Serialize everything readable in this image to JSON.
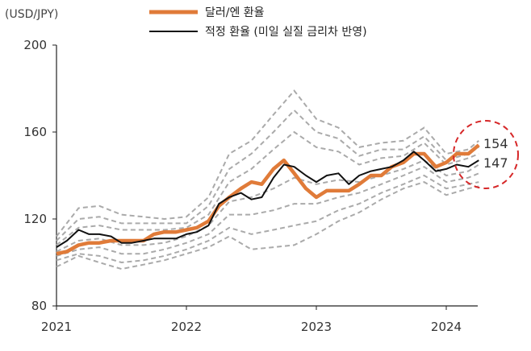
{
  "chart_data": {
    "type": "line",
    "unit_label": "(USD/JPY)",
    "ylim": [
      80,
      200
    ],
    "y_ticks": [
      "80",
      "120",
      "160",
      "200"
    ],
    "x_ticks": [
      "2021",
      "2022",
      "2023",
      "2024"
    ],
    "x_range": [
      2021.0,
      2024.25
    ],
    "legend": [
      "달러/엔 환율",
      "적정 환율 (미일 실질 금리차 반영)"
    ],
    "series": [
      {
        "name": "달러/엔 환율",
        "color": "#E07B39",
        "x": [
          2021.0,
          2021.08,
          2021.17,
          2021.25,
          2021.33,
          2021.42,
          2021.5,
          2021.58,
          2021.67,
          2021.75,
          2021.83,
          2021.92,
          2022.0,
          2022.08,
          2022.17,
          2022.25,
          2022.33,
          2022.42,
          2022.5,
          2022.58,
          2022.67,
          2022.75,
          2022.83,
          2022.92,
          2023.0,
          2023.08,
          2023.17,
          2023.25,
          2023.33,
          2023.42,
          2023.5,
          2023.58,
          2023.67,
          2023.75,
          2023.83,
          2023.92,
          2024.0,
          2024.08,
          2024.17,
          2024.25
        ],
        "values": [
          104,
          105,
          108,
          109,
          109,
          110,
          110,
          110,
          110,
          113,
          114,
          114,
          115,
          116,
          119,
          126,
          130,
          134,
          137,
          136,
          143,
          147,
          141,
          134,
          130,
          133,
          133,
          133,
          136,
          140,
          140,
          144,
          146,
          150,
          150,
          144,
          146,
          150,
          150,
          154
        ]
      },
      {
        "name": "적정 환율 (미일 실질 금리차 반영)",
        "color": "#111111",
        "x": [
          2021.0,
          2021.08,
          2021.17,
          2021.25,
          2021.33,
          2021.42,
          2021.5,
          2021.58,
          2021.67,
          2021.75,
          2021.83,
          2021.92,
          2022.0,
          2022.08,
          2022.17,
          2022.25,
          2022.33,
          2022.42,
          2022.5,
          2022.58,
          2022.67,
          2022.75,
          2022.83,
          2022.92,
          2023.0,
          2023.08,
          2023.17,
          2023.25,
          2023.33,
          2023.42,
          2023.5,
          2023.58,
          2023.67,
          2023.75,
          2023.83,
          2023.92,
          2024.0,
          2024.08,
          2024.17,
          2024.25
        ],
        "values": [
          107,
          110,
          115,
          113,
          113,
          112,
          109,
          109,
          110,
          111,
          111,
          111,
          113,
          114,
          117,
          127,
          130,
          132,
          129,
          130,
          139,
          145,
          144,
          140,
          137,
          140,
          141,
          136,
          140,
          142,
          143,
          144,
          147,
          151,
          147,
          142,
          143,
          145,
          144,
          147
        ]
      }
    ],
    "bands": [
      {
        "color": "#AAAAAA",
        "x": [
          2021.0,
          2021.17,
          2021.33,
          2021.5,
          2021.67,
          2021.83,
          2022.0,
          2022.17,
          2022.33,
          2022.5,
          2022.67,
          2022.83,
          2023.0,
          2023.17,
          2023.33,
          2023.5,
          2023.67,
          2023.83,
          2024.0,
          2024.17,
          2024.25
        ],
        "values": [
          112,
          125,
          126,
          122,
          121,
          120,
          121,
          130,
          150,
          156,
          168,
          179,
          166,
          162,
          153,
          155,
          156,
          162,
          150,
          152,
          156
        ]
      },
      {
        "color": "#AAAAAA",
        "x": [
          2021.0,
          2021.17,
          2021.33,
          2021.5,
          2021.67,
          2021.83,
          2022.0,
          2022.17,
          2022.33,
          2022.5,
          2022.67,
          2022.83,
          2023.0,
          2023.17,
          2023.33,
          2023.5,
          2023.67,
          2023.83,
          2024.0,
          2024.17,
          2024.25
        ],
        "values": [
          110,
          120,
          121,
          118,
          118,
          118,
          118,
          126,
          143,
          150,
          160,
          170,
          160,
          157,
          149,
          152,
          152,
          158,
          147,
          150,
          153
        ]
      },
      {
        "color": "#AAAAAA",
        "x": [
          2021.0,
          2021.17,
          2021.33,
          2021.5,
          2021.67,
          2021.83,
          2022.0,
          2022.17,
          2022.33,
          2022.5,
          2022.67,
          2022.83,
          2023.0,
          2023.17,
          2023.33,
          2023.5,
          2023.67,
          2023.83,
          2024.0,
          2024.17,
          2024.25
        ],
        "values": [
          108,
          116,
          117,
          115,
          115,
          115,
          116,
          122,
          137,
          143,
          152,
          160,
          153,
          151,
          145,
          148,
          149,
          155,
          145,
          148,
          150
        ]
      },
      {
        "color": "#AAAAAA",
        "x": [
          2021.0,
          2021.17,
          2021.33,
          2021.5,
          2021.67,
          2021.83,
          2022.0,
          2022.17,
          2022.33,
          2022.5,
          2022.67,
          2022.83,
          2023.0,
          2023.17,
          2023.33,
          2023.5,
          2023.67,
          2023.83,
          2024.0,
          2024.17,
          2024.25
        ],
        "values": [
          105,
          110,
          111,
          108,
          108,
          109,
          112,
          117,
          128,
          130,
          134,
          139,
          136,
          138,
          137,
          140,
          143,
          147,
          140,
          142,
          145
        ]
      },
      {
        "color": "#AAAAAA",
        "x": [
          2021.0,
          2021.17,
          2021.33,
          2021.5,
          2021.67,
          2021.83,
          2022.0,
          2022.17,
          2022.33,
          2022.5,
          2022.67,
          2022.83,
          2023.0,
          2023.17,
          2023.33,
          2023.5,
          2023.67,
          2023.83,
          2024.0,
          2024.17,
          2024.25
        ],
        "values": [
          103,
          106,
          107,
          104,
          104,
          106,
          109,
          113,
          122,
          122,
          124,
          127,
          127,
          130,
          132,
          136,
          140,
          144,
          137,
          139,
          141
        ]
      },
      {
        "color": "#AAAAAA",
        "x": [
          2021.0,
          2021.17,
          2021.33,
          2021.5,
          2021.67,
          2021.83,
          2022.0,
          2022.17,
          2022.33,
          2022.5,
          2022.67,
          2022.83,
          2023.0,
          2023.17,
          2023.33,
          2023.5,
          2023.67,
          2023.83,
          2024.0,
          2024.17,
          2024.25
        ],
        "values": [
          101,
          104,
          103,
          100,
          101,
          103,
          106,
          110,
          116,
          113,
          115,
          117,
          119,
          124,
          127,
          132,
          136,
          140,
          134,
          136,
          137
        ]
      },
      {
        "color": "#AAAAAA",
        "x": [
          2021.0,
          2021.17,
          2021.33,
          2021.5,
          2021.67,
          2021.83,
          2022.0,
          2022.17,
          2022.33,
          2022.5,
          2022.67,
          2022.83,
          2023.0,
          2023.17,
          2023.33,
          2023.5,
          2023.67,
          2023.83,
          2024.0,
          2024.17,
          2024.25
        ],
        "values": [
          98,
          103,
          100,
          97,
          99,
          101,
          104,
          107,
          112,
          106,
          107,
          108,
          113,
          119,
          123,
          129,
          134,
          137,
          131,
          134,
          135
        ]
      }
    ],
    "annotations": [
      {
        "label": "154",
        "value": 154
      },
      {
        "label": "147",
        "value": 147
      }
    ],
    "highlight_color": "#D62728",
    "grid": false
  }
}
